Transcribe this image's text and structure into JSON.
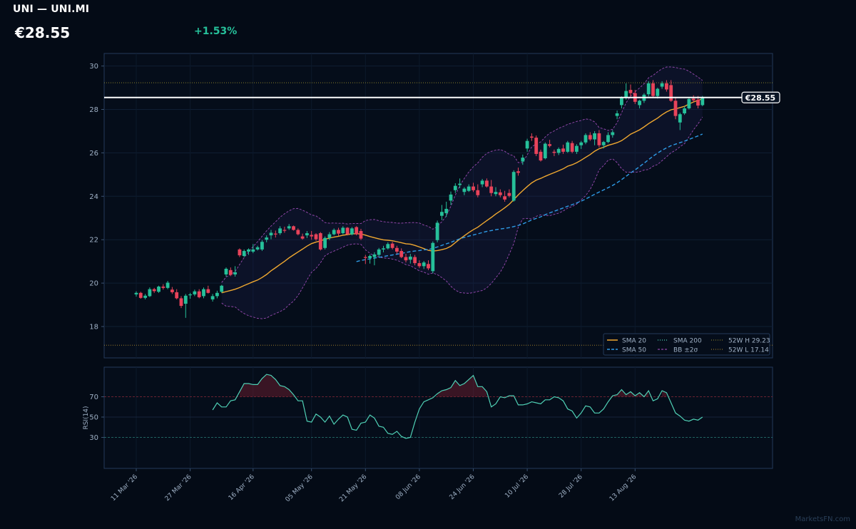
{
  "header": {
    "title": "UNI — UNI.MI",
    "price": "€28.55",
    "change": "+1.53%"
  },
  "watermark": "MarketsFN.com",
  "colors": {
    "background": "#040b16",
    "panel": "#050d1a",
    "up": "#26c09a",
    "down": "#e8435a",
    "sma20": "#f0a830",
    "sma50": "#2e9be6",
    "sma200": "#4fd0b5",
    "bb": "#b455cc",
    "h52": "#9a8f2a",
    "l52": "#b28a2c",
    "rsi": "#4fd0b5"
  },
  "chart_data": [
    {
      "type": "candlestick",
      "ylim": [
        16.8,
        30.6
      ],
      "yticks": [
        18,
        20,
        22,
        24,
        26,
        28,
        30
      ],
      "x_tick_labels": [
        "11 Mar '26",
        "27 Mar '26",
        "16 Apr '26",
        "05 May '26",
        "21 May '26",
        "08 Jun '26",
        "24 Jun '26",
        "10 Jul '26",
        "28 Jul '26",
        "13 Aug '26"
      ],
      "x_tick_index": [
        0,
        12,
        26,
        39,
        51,
        63,
        75,
        87,
        99,
        111
      ],
      "last_price": 28.55,
      "last_price_label": "€28.55",
      "high_52w": 29.23,
      "low_52w": 17.14,
      "legend": [
        "SMA 20",
        "SMA 50",
        "SMA 200",
        "BB ±2σ",
        "52W H 29.23",
        "52W L 17.14"
      ],
      "legend_position": "bottom-right",
      "ohlc": [
        [
          19.48,
          19.62,
          19.38,
          19.55
        ],
        [
          19.55,
          19.6,
          19.28,
          19.32
        ],
        [
          19.32,
          19.5,
          19.25,
          19.42
        ],
        [
          19.4,
          19.8,
          19.36,
          19.72
        ],
        [
          19.72,
          19.78,
          19.55,
          19.63
        ],
        [
          19.6,
          19.88,
          19.55,
          19.84
        ],
        [
          19.84,
          19.95,
          19.7,
          19.78
        ],
        [
          19.78,
          20.1,
          19.72,
          20.02
        ],
        [
          19.7,
          19.82,
          19.5,
          19.58
        ],
        [
          19.58,
          19.72,
          19.25,
          19.3
        ],
        [
          19.3,
          19.4,
          18.85,
          18.95
        ],
        [
          19.05,
          19.5,
          18.4,
          19.42
        ],
        [
          19.45,
          19.55,
          19.28,
          19.48
        ],
        [
          19.48,
          19.7,
          19.4,
          19.62
        ],
        [
          19.62,
          19.72,
          19.3,
          19.35
        ],
        [
          19.4,
          19.8,
          19.3,
          19.72
        ],
        [
          19.72,
          19.88,
          19.52,
          19.55
        ],
        [
          19.25,
          19.5,
          19.15,
          19.4
        ],
        [
          19.4,
          19.65,
          19.3,
          19.55
        ],
        [
          19.6,
          19.92,
          19.55,
          19.88
        ],
        [
          20.4,
          20.72,
          20.3,
          20.66
        ],
        [
          20.6,
          20.72,
          20.32,
          20.38
        ],
        [
          20.4,
          20.78,
          20.3,
          20.5
        ],
        [
          21.55,
          21.6,
          21.2,
          21.28
        ],
        [
          21.25,
          21.55,
          21.2,
          21.48
        ],
        [
          21.45,
          21.6,
          21.3,
          21.55
        ],
        [
          21.45,
          21.8,
          21.38,
          21.55
        ],
        [
          21.55,
          21.72,
          21.5,
          21.65
        ],
        [
          21.55,
          21.98,
          21.48,
          21.9
        ],
        [
          22.0,
          22.2,
          21.88,
          22.1
        ],
        [
          22.2,
          22.45,
          22.02,
          22.32
        ],
        [
          22.28,
          22.42,
          22.1,
          22.25
        ],
        [
          22.3,
          22.62,
          22.22,
          22.52
        ],
        [
          22.45,
          22.6,
          22.32,
          22.42
        ],
        [
          22.52,
          22.72,
          22.45,
          22.62
        ],
        [
          22.62,
          22.65,
          22.42,
          22.45
        ],
        [
          22.45,
          22.52,
          22.2,
          22.25
        ],
        [
          22.15,
          22.28,
          22.0,
          22.05
        ],
        [
          22.2,
          22.4,
          22.08,
          22.3
        ],
        [
          22.22,
          22.4,
          22.0,
          22.15
        ],
        [
          22.25,
          22.3,
          21.95,
          22.02
        ],
        [
          22.3,
          22.35,
          21.5,
          21.55
        ],
        [
          21.62,
          22.15,
          21.55,
          22.08
        ],
        [
          22.08,
          22.35,
          21.98,
          22.25
        ],
        [
          22.25,
          22.52,
          22.2,
          22.45
        ],
        [
          22.45,
          22.55,
          22.18,
          22.28
        ],
        [
          22.3,
          22.62,
          22.25,
          22.55
        ],
        [
          22.55,
          22.58,
          22.2,
          22.25
        ],
        [
          22.25,
          22.58,
          22.2,
          22.52
        ],
        [
          22.58,
          22.62,
          22.2,
          22.25
        ],
        [
          22.4,
          22.5,
          21.98,
          22.05
        ],
        [
          21.2,
          21.3,
          20.88,
          21.18
        ],
        [
          21.15,
          21.32,
          20.9,
          21.25
        ],
        [
          21.2,
          21.42,
          20.82,
          21.32
        ],
        [
          21.3,
          21.62,
          21.22,
          21.55
        ],
        [
          21.55,
          21.72,
          21.42,
          21.6
        ],
        [
          21.6,
          21.88,
          21.55,
          21.8
        ],
        [
          21.82,
          21.9,
          21.55,
          21.62
        ],
        [
          21.62,
          21.72,
          21.35,
          21.45
        ],
        [
          21.48,
          21.6,
          21.15,
          21.2
        ],
        [
          21.2,
          21.35,
          20.95,
          21.05
        ],
        [
          21.08,
          21.35,
          20.9,
          21.22
        ],
        [
          21.2,
          21.3,
          20.82,
          20.92
        ],
        [
          20.92,
          21.05,
          20.7,
          20.78
        ],
        [
          20.78,
          21.02,
          20.65,
          20.95
        ],
        [
          20.88,
          21.05,
          20.6,
          20.68
        ],
        [
          20.55,
          21.92,
          20.45,
          21.85
        ],
        [
          21.98,
          22.88,
          21.88,
          22.78
        ],
        [
          23.1,
          23.6,
          22.9,
          23.28
        ],
        [
          23.22,
          23.75,
          23.05,
          23.42
        ],
        [
          23.8,
          24.22,
          23.6,
          24.08
        ],
        [
          24.28,
          24.6,
          24.15,
          24.48
        ],
        [
          24.52,
          24.82,
          24.38,
          24.58
        ],
        [
          24.2,
          24.42,
          24.05,
          24.35
        ],
        [
          24.25,
          24.55,
          24.2,
          24.45
        ],
        [
          24.45,
          24.62,
          24.2,
          24.28
        ],
        [
          24.28,
          24.55,
          23.95,
          24.05
        ],
        [
          24.55,
          24.8,
          24.42,
          24.72
        ],
        [
          24.72,
          24.82,
          24.4,
          24.45
        ],
        [
          24.45,
          24.75,
          24.0,
          24.15
        ],
        [
          24.1,
          24.42,
          24.0,
          24.2
        ],
        [
          24.18,
          24.32,
          23.95,
          24.05
        ],
        [
          24.0,
          24.25,
          23.75,
          23.85
        ],
        [
          24.15,
          24.32,
          23.95,
          24.02
        ],
        [
          23.8,
          25.2,
          23.75,
          25.12
        ],
        [
          25.15,
          25.32,
          24.95,
          25.08
        ],
        [
          25.6,
          25.92,
          25.45,
          25.78
        ],
        [
          26.2,
          26.65,
          26.05,
          26.55
        ],
        [
          26.75,
          26.9,
          26.55,
          26.7
        ],
        [
          26.7,
          26.8,
          25.85,
          25.95
        ],
        [
          26.05,
          26.15,
          25.6,
          25.65
        ],
        [
          25.75,
          26.48,
          25.7,
          26.42
        ],
        [
          26.4,
          26.6,
          26.25,
          26.32
        ],
        [
          26.05,
          26.15,
          25.85,
          26.0
        ],
        [
          26.0,
          26.25,
          25.9,
          26.18
        ],
        [
          26.2,
          26.38,
          25.95,
          26.05
        ],
        [
          26.05,
          26.55,
          26.0,
          26.48
        ],
        [
          26.45,
          26.55,
          25.98,
          26.05
        ],
        [
          26.05,
          26.4,
          25.95,
          26.32
        ],
        [
          26.35,
          26.55,
          26.18,
          26.48
        ],
        [
          26.48,
          26.9,
          26.4,
          26.82
        ],
        [
          26.82,
          26.95,
          26.55,
          26.62
        ],
        [
          26.62,
          27.0,
          26.35,
          26.9
        ],
        [
          26.9,
          27.05,
          26.25,
          26.35
        ],
        [
          26.35,
          26.55,
          26.2,
          26.5
        ],
        [
          26.5,
          26.95,
          26.45,
          26.82
        ],
        [
          26.82,
          27.05,
          26.7,
          26.95
        ],
        [
          27.7,
          27.95,
          27.55,
          27.82
        ],
        [
          28.2,
          28.6,
          28.05,
          28.55
        ],
        [
          28.55,
          29.2,
          28.45,
          28.85
        ],
        [
          28.9,
          29.15,
          28.6,
          28.75
        ],
        [
          28.75,
          28.9,
          28.25,
          28.35
        ],
        [
          28.2,
          28.45,
          28.05,
          28.4
        ],
        [
          28.4,
          28.75,
          28.3,
          28.68
        ],
        [
          28.7,
          29.3,
          28.6,
          29.2
        ],
        [
          29.2,
          29.35,
          28.55,
          28.62
        ],
        [
          28.62,
          29.0,
          28.5,
          28.95
        ],
        [
          29.05,
          29.3,
          28.95,
          29.2
        ],
        [
          29.2,
          29.35,
          28.82,
          28.92
        ],
        [
          29.12,
          29.35,
          28.35,
          28.4
        ],
        [
          28.4,
          28.55,
          27.55,
          27.7
        ],
        [
          27.4,
          27.85,
          27.05,
          27.78
        ],
        [
          27.82,
          28.15,
          27.75,
          28.05
        ],
        [
          28.05,
          28.55,
          28.0,
          28.48
        ],
        [
          28.5,
          28.65,
          28.35,
          28.42
        ],
        [
          28.45,
          28.62,
          28.05,
          28.18
        ],
        [
          28.2,
          28.62,
          28.15,
          28.55
        ]
      ]
    },
    {
      "type": "line",
      "ylabel": "RSI(14)",
      "ylim": [
        0,
        100
      ],
      "yticks": [
        30,
        50,
        70
      ],
      "values": [
        57,
        64,
        60,
        60,
        66,
        67,
        75,
        83,
        83,
        82,
        82,
        88,
        92,
        91,
        87,
        81,
        80,
        77,
        72,
        66,
        66,
        46,
        45,
        53,
        50,
        45,
        51,
        43,
        48,
        52,
        50,
        38,
        37,
        44,
        45,
        52,
        49,
        41,
        40,
        34,
        33,
        36,
        31,
        29,
        30,
        45,
        58,
        65,
        67,
        69,
        73,
        76,
        77,
        79,
        86,
        81,
        83,
        87,
        91,
        80,
        80,
        75,
        60,
        63,
        70,
        69,
        71,
        71,
        62,
        62,
        63,
        65,
        64,
        63,
        67,
        67,
        70,
        69,
        66,
        58,
        56,
        49,
        54,
        61,
        60,
        54,
        54,
        58,
        65,
        71,
        72,
        77,
        72,
        75,
        71,
        74,
        70,
        76,
        66,
        68,
        76,
        74,
        64,
        54,
        51,
        47,
        46,
        48,
        47,
        50
      ]
    }
  ]
}
